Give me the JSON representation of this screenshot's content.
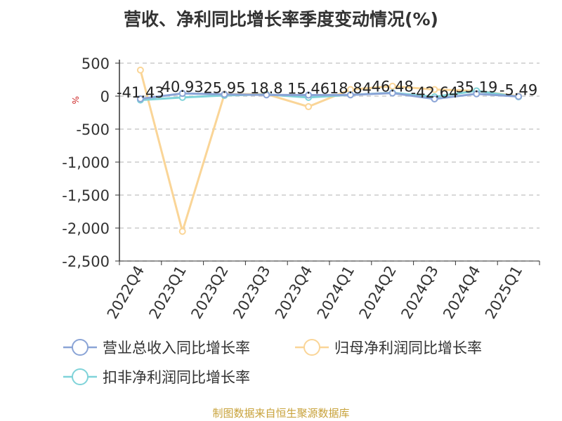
{
  "title": "营收、净利同比增长率季度变动情况(%)",
  "source": "制图数据来自恒生聚源数据库",
  "chart_data": {
    "type": "line",
    "title": "营收、净利同比增长率季度变动情况(%)",
    "ylabel": "%",
    "xlabel": "",
    "ylim": [
      -2500,
      500
    ],
    "yticks": [
      500,
      0,
      -500,
      -1000,
      -1500,
      -2000,
      -2500
    ],
    "ytick_labels": [
      "500",
      "0",
      "-500",
      "-1,000",
      "-1,500",
      "-2,000",
      "-2,500"
    ],
    "categories": [
      "2022Q4",
      "2023Q1",
      "2023Q2",
      "2023Q3",
      "2023Q4",
      "2024Q1",
      "2024Q2",
      "2024Q3",
      "2024Q4",
      "2025Q1"
    ],
    "grid": true,
    "legend_position": "bottom",
    "series": [
      {
        "name": "营业总收入同比增长率",
        "color": "#8aa4d6",
        "values": [
          -41.43,
          40.93,
          25.95,
          18.8,
          15.46,
          18.84,
          46.48,
          -42.64,
          35.19,
          -5.49
        ],
        "labels": [
          "-41.43",
          "40.93",
          "25.95",
          "18.8",
          "15.46",
          "18.84",
          "46.48",
          "-42.64",
          "35.19",
          "-5.49"
        ]
      },
      {
        "name": "归母净利润同比增长率",
        "color": "#fad597",
        "values": [
          395,
          -2050,
          30,
          30,
          -160,
          100,
          150,
          100,
          80,
          0
        ]
      },
      {
        "name": "扣非净利润同比增长率",
        "color": "#7fd3d9",
        "values": [
          -60,
          -20,
          10,
          25,
          -20,
          20,
          50,
          -10,
          80,
          -10
        ]
      }
    ]
  }
}
